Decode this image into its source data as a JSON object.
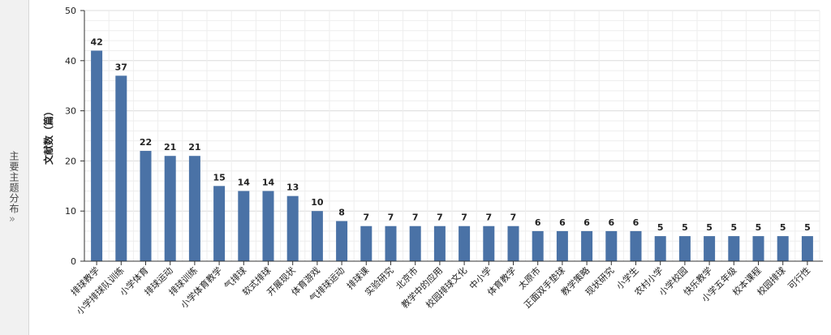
{
  "sidebar": {
    "label": "主要主题分布",
    "expand_icon": "double-chevron-right-icon",
    "expand_glyph": "»"
  },
  "chart_data": {
    "type": "bar",
    "title": "",
    "xlabel": "",
    "ylabel": "文献数（篇）",
    "ylim": [
      0,
      50
    ],
    "yticks": [
      0,
      10,
      20,
      30,
      40,
      50
    ],
    "grid": true,
    "bar_color": "#4a72a6",
    "categories": [
      "排球教学",
      "小学排球队训练",
      "小学体育",
      "排球运动",
      "排球训练",
      "小学体育教学",
      "气排球",
      "软式排球",
      "开展现状",
      "体育游戏",
      "气排球运动",
      "排球课",
      "实验研究",
      "北京市",
      "教学中的应用",
      "校园排球文化",
      "中小学",
      "体育教学",
      "太原市",
      "正面双手垫球",
      "教学策略",
      "现状研究",
      "小学生",
      "农村小学",
      "小学校园",
      "快乐教学",
      "小学五年级",
      "校本课程",
      "校园排球",
      "可行性"
    ],
    "values": [
      42,
      37,
      22,
      21,
      21,
      15,
      14,
      14,
      13,
      10,
      8,
      7,
      7,
      7,
      7,
      7,
      7,
      7,
      6,
      6,
      6,
      6,
      6,
      5,
      5,
      5,
      5,
      5,
      5,
      5
    ]
  }
}
